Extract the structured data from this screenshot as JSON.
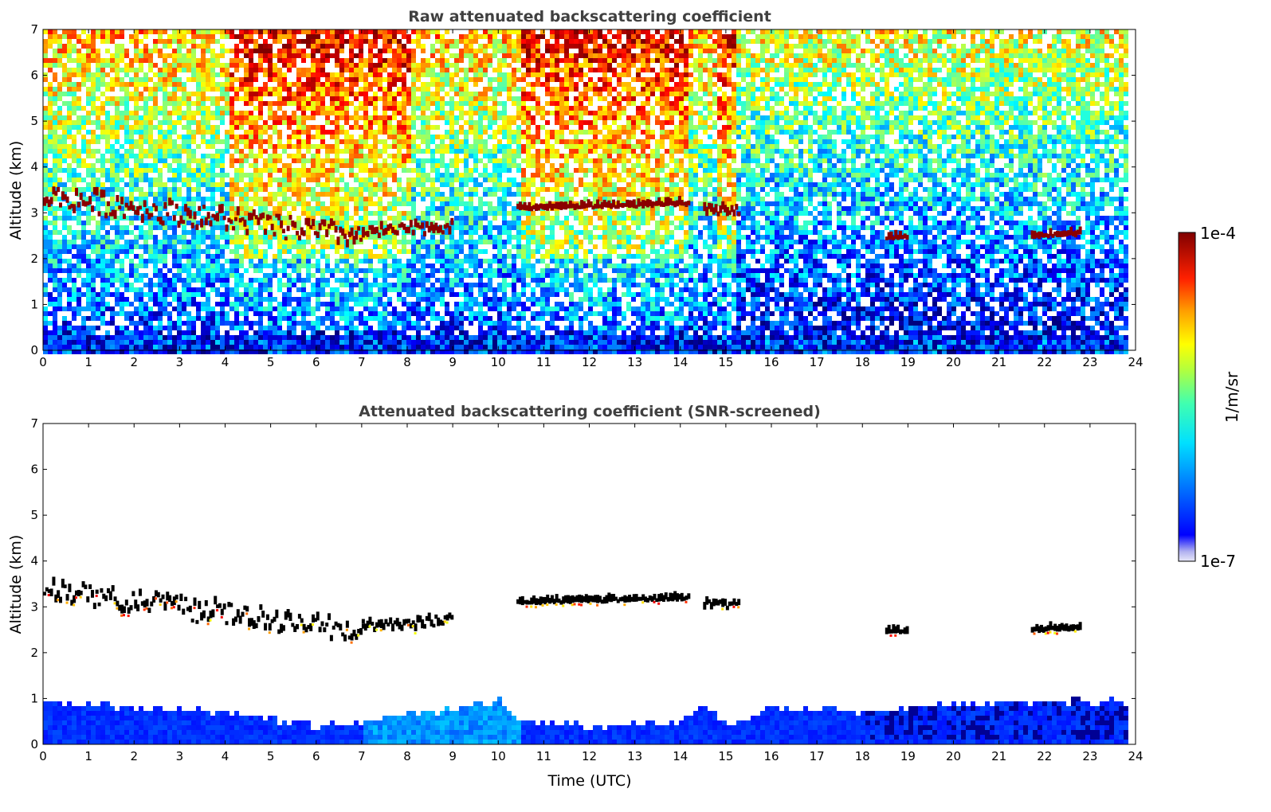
{
  "chart_data": [
    {
      "type": "heatmap",
      "title": "Raw attenuated backscattering coefficient",
      "xlabel": "",
      "ylabel": "Altitude (km)",
      "xlim": [
        0,
        24
      ],
      "ylim": [
        0,
        7
      ],
      "xticks": [
        "0",
        "1",
        "2",
        "3",
        "4",
        "5",
        "6",
        "7",
        "8",
        "9",
        "10",
        "11",
        "12",
        "13",
        "14",
        "15",
        "16",
        "17",
        "18",
        "19",
        "20",
        "21",
        "22",
        "23",
        "24"
      ],
      "yticks": [
        "0",
        "1",
        "2",
        "3",
        "4",
        "5",
        "6",
        "7"
      ],
      "data_end_time": 23.8,
      "cloud_layers": [
        {
          "t_start": 0.0,
          "t_end": 7.0,
          "alt_start": 3.3,
          "alt_end": 2.4,
          "alt_jitter": 0.25
        },
        {
          "t_start": 7.0,
          "t_end": 9.0,
          "alt_start": 2.5,
          "alt_end": 2.65,
          "alt_jitter": 0.12
        },
        {
          "t_start": 10.4,
          "t_end": 14.2,
          "alt_start": 3.05,
          "alt_end": 3.15,
          "alt_jitter": 0.03
        },
        {
          "t_start": 14.5,
          "t_end": 15.3,
          "alt_start": 3.0,
          "alt_end": 3.0,
          "alt_jitter": 0.08
        },
        {
          "t_start": 18.5,
          "t_end": 19.0,
          "alt_start": 2.42,
          "alt_end": 2.42,
          "alt_jitter": 0.02
        },
        {
          "t_start": 21.7,
          "t_end": 22.8,
          "alt_start": 2.45,
          "alt_end": 2.5,
          "alt_jitter": 0.03
        }
      ]
    },
    {
      "type": "heatmap",
      "title": "Attenuated backscattering coefficient (SNR-screened)",
      "xlabel": "Time (UTC)",
      "ylabel": "Altitude (km)",
      "xlim": [
        0,
        24
      ],
      "ylim": [
        0,
        7
      ],
      "xticks": [
        "0",
        "1",
        "2",
        "3",
        "4",
        "5",
        "6",
        "7",
        "8",
        "9",
        "10",
        "11",
        "12",
        "13",
        "14",
        "15",
        "16",
        "17",
        "18",
        "19",
        "20",
        "21",
        "22",
        "23",
        "24"
      ],
      "yticks": [
        "0",
        "1",
        "2",
        "3",
        "4",
        "5",
        "6",
        "7"
      ],
      "data_end_time": 23.8,
      "boundary_layer_top": [
        {
          "t": 0,
          "alt": 1.0
        },
        {
          "t": 2,
          "alt": 0.85
        },
        {
          "t": 4,
          "alt": 0.75
        },
        {
          "t": 6,
          "alt": 0.45
        },
        {
          "t": 7,
          "alt": 0.55
        },
        {
          "t": 8,
          "alt": 0.7
        },
        {
          "t": 10,
          "alt": 1.0
        },
        {
          "t": 10.4,
          "alt": 0.6
        },
        {
          "t": 12,
          "alt": 0.45
        },
        {
          "t": 14,
          "alt": 0.5
        },
        {
          "t": 14.5,
          "alt": 0.9
        },
        {
          "t": 15,
          "alt": 0.5
        },
        {
          "t": 16,
          "alt": 0.85
        },
        {
          "t": 18,
          "alt": 0.75
        },
        {
          "t": 20,
          "alt": 0.95
        },
        {
          "t": 23.8,
          "alt": 1.0
        }
      ]
    }
  ],
  "colorbar": {
    "max_label": "1e-4",
    "min_label": "1e-7",
    "unit_label": "1/m/sr",
    "colormap": "jet",
    "log_scale": true
  }
}
